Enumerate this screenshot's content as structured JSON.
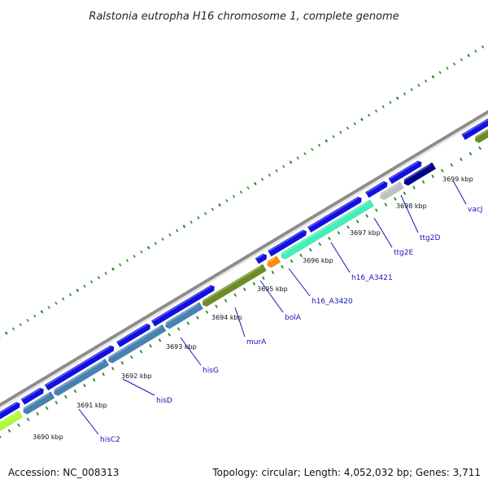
{
  "title": "Ralstonia eutropha H16 chromosome 1, complete genome",
  "footer": {
    "accession": "Accession: NC_008313",
    "topology": "Topology: circular; Length: 4,052,032 bp; Genes: 3,711"
  },
  "ruler_ticks": [
    {
      "label": "3690 kbp"
    },
    {
      "label": "3691 kbp"
    },
    {
      "label": "3692 kbp"
    },
    {
      "label": "3693 kbp"
    },
    {
      "label": "3694 kbp"
    },
    {
      "label": "3695 kbp"
    },
    {
      "label": "3696 kbp"
    },
    {
      "label": "3697 kbp"
    },
    {
      "label": "3698 kbp"
    },
    {
      "label": "3699 kbp"
    }
  ],
  "gene_labels": [
    {
      "name": "hisC2"
    },
    {
      "name": "hisD"
    },
    {
      "name": "hisG"
    },
    {
      "name": "murA"
    },
    {
      "name": "bolA"
    },
    {
      "name": "h16_A3420"
    },
    {
      "name": "h16_A3421"
    },
    {
      "name": "ttg2E"
    },
    {
      "name": "ttg2D"
    },
    {
      "name": "vacJ"
    }
  ],
  "colors": {
    "backbone": "#8c8c8c",
    "forward_strand": "#1010e6",
    "reverse_a": "#4682b4",
    "reverse_b": "#6b8e23",
    "reverse_c": "#40f0b8",
    "reverse_d": "#ff8c00",
    "reverse_e": "#c0c0c0",
    "reverse_f": "#00008b",
    "reverse_g": "#adff2f",
    "tick": "#228b22",
    "label": "#1414b4"
  }
}
